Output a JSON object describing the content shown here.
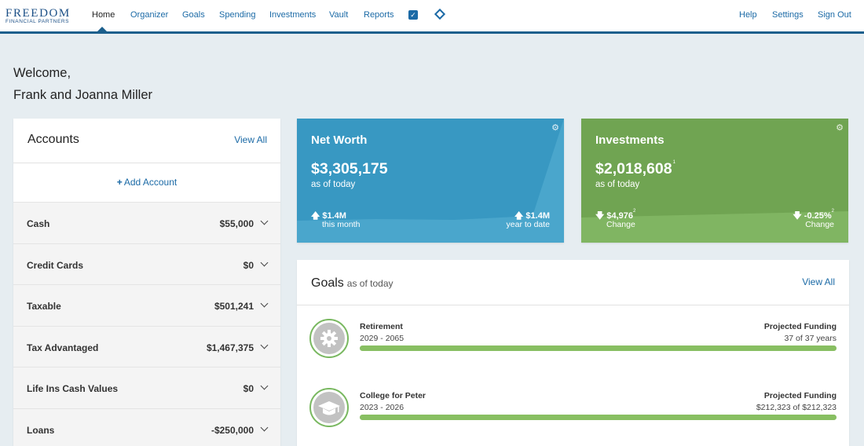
{
  "nav": {
    "logo_main": "FREEDOM",
    "logo_sub": "FINANCIAL PARTNERS",
    "items": [
      "Home",
      "Organizer",
      "Goals",
      "Spending",
      "Investments",
      "Vault",
      "Reports"
    ],
    "active": "Home",
    "check_icon": "checkbox-icon",
    "diamond_icon": "diamond-icon",
    "right_items": [
      "Help",
      "Settings",
      "Sign Out"
    ],
    "accent": "#1b5f8c"
  },
  "welcome": {
    "line1": "Welcome,",
    "line2": "Frank and Joanna Miller"
  },
  "accounts": {
    "title": "Accounts",
    "view_all": "View All",
    "add_label": "Add Account",
    "rows": [
      {
        "label": "Cash",
        "value": "$55,000"
      },
      {
        "label": "Credit Cards",
        "value": "$0"
      },
      {
        "label": "Taxable",
        "value": "$501,241"
      },
      {
        "label": "Tax Advantaged",
        "value": "$1,467,375"
      },
      {
        "label": "Life Ins Cash Values",
        "value": "$0"
      },
      {
        "label": "Loans",
        "value": "-$250,000"
      }
    ]
  },
  "net_worth": {
    "title": "Net Worth",
    "amount": "$3,305,175",
    "as_of": "as of today",
    "left_value": "$1.4M",
    "left_label": "this month",
    "right_value": "$1.4M",
    "right_label": "year to date",
    "color": "#3898c2"
  },
  "investments": {
    "title": "Investments",
    "amount": "$2,018,608",
    "amount_note": "1",
    "as_of": "as of today",
    "left_value": "$4,976",
    "left_note": "2",
    "left_label": "Change",
    "right_value": "-0.25%",
    "right_note": "2",
    "right_label": "Change",
    "color": "#70a452"
  },
  "goals": {
    "title": "Goals",
    "subtitle": "as of today",
    "view_all": "View All",
    "items": [
      {
        "name": "Retirement",
        "years": "2029 - 2065",
        "pf_label": "Projected Funding",
        "pf_value": "37 of 37 years",
        "progress": 1.0,
        "icon": "gear-icon"
      },
      {
        "name": "College for Peter",
        "years": "2023 - 2026",
        "pf_label": "Projected Funding",
        "pf_value": "$212,323 of $212,323",
        "progress": 1.0,
        "icon": "graduation-cap-icon"
      }
    ]
  }
}
